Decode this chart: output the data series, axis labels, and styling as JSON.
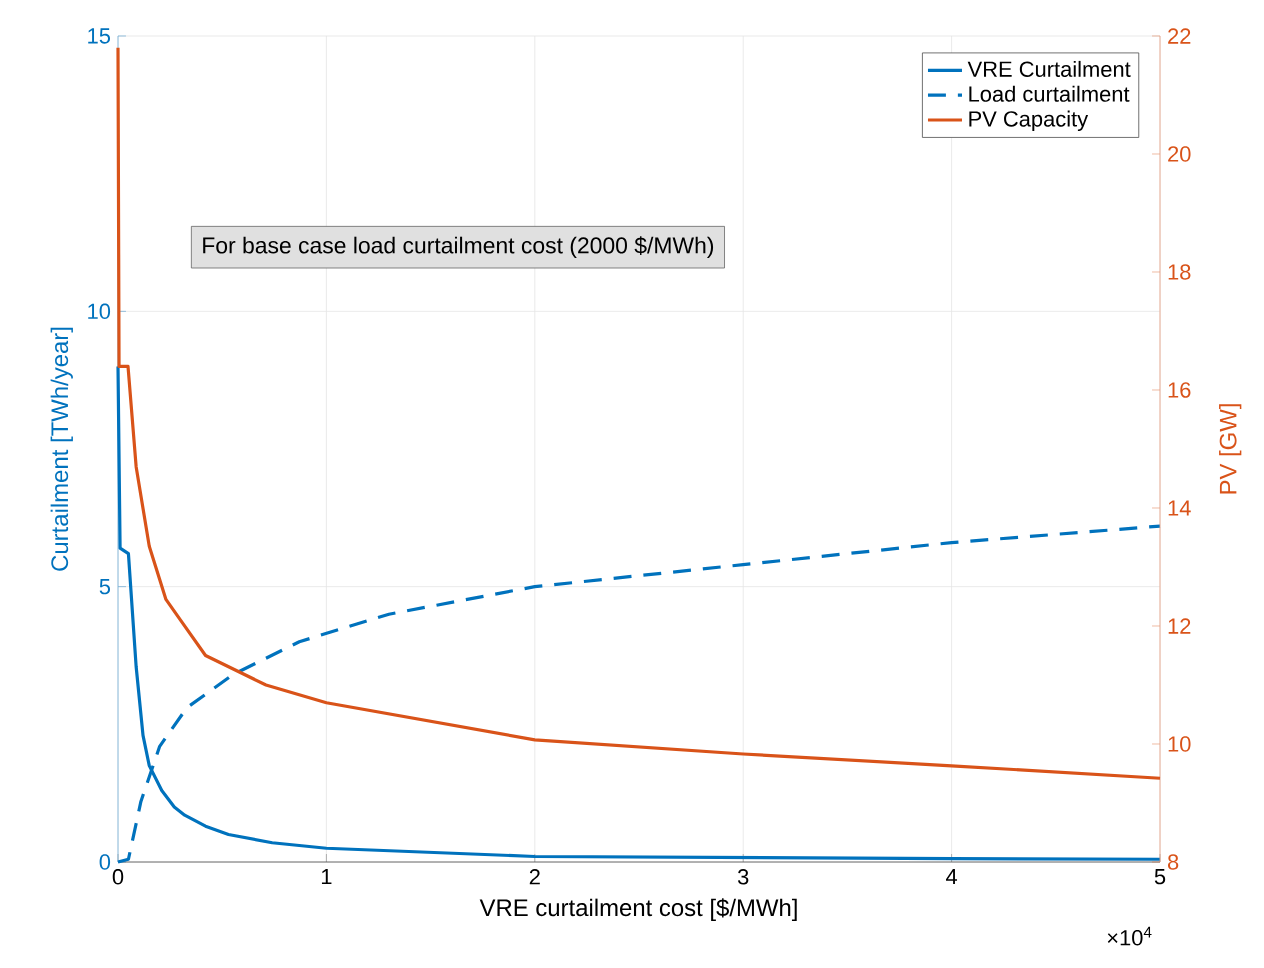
{
  "chart_data": {
    "type": "line",
    "xlabel": "VRE curtailment cost [$/MWh]",
    "ylabel": "Curtailment [TWh/year]",
    "y2label": "PV [GW]",
    "xlim": [
      0,
      5
    ],
    "xticks": [
      0,
      1,
      2,
      3,
      4,
      5
    ],
    "ylim": [
      0,
      15
    ],
    "yticks": [
      0,
      5,
      10,
      15
    ],
    "y2lim": [
      8,
      22
    ],
    "y2ticks": [
      8,
      10,
      12,
      14,
      16,
      18,
      20,
      22
    ],
    "grid": true,
    "legend": "top right",
    "annotations": [
      "For base case load curtailment cost (2000 $/MWh)",
      "×10$^{4}$"
    ],
    "series": [
      {
        "name": "VRE Curtailment",
        "color": "#0072bd",
        "line_style": "solid",
        "x": [
          0,
          0.01,
          0.05,
          0.087,
          0.12,
          0.15,
          0.21,
          0.27,
          0.32,
          0.42,
          0.53,
          0.74,
          1,
          2,
          3,
          4,
          5
        ],
        "values": [
          9.0,
          5.7,
          5.6,
          3.55,
          2.3,
          1.75,
          1.3,
          1.0,
          0.85,
          0.65,
          0.5,
          0.35,
          0.25,
          0.1,
          0.08,
          0.06,
          0.05
        ]
      },
      {
        "name": "Load curtailment",
        "color": "#0072bd",
        "line_style": "dashed",
        "x": [
          0,
          0.05,
          0.11,
          0.2,
          0.33,
          0.55,
          0.87,
          1.3,
          2,
          3,
          4,
          5
        ],
        "values": [
          0,
          0.05,
          1.1,
          2.1,
          2.8,
          3.4,
          4.0,
          4.5,
          5.0,
          5.4,
          5.8,
          6.1
        ]
      },
      {
        "name": "PV Capacity",
        "color": "#d95319",
        "line_style": "solid",
        "axis": "y2",
        "x": [
          0,
          0.005,
          0.048,
          0.087,
          0.15,
          0.23,
          0.3,
          0.42,
          0.71,
          1,
          2,
          3,
          4,
          5
        ],
        "values": [
          21.8,
          16.4,
          16.4,
          14.7,
          13.35,
          12.45,
          12.1,
          11.5,
          11.0,
          10.7,
          10.07,
          9.83,
          9.63,
          9.42
        ]
      }
    ]
  }
}
